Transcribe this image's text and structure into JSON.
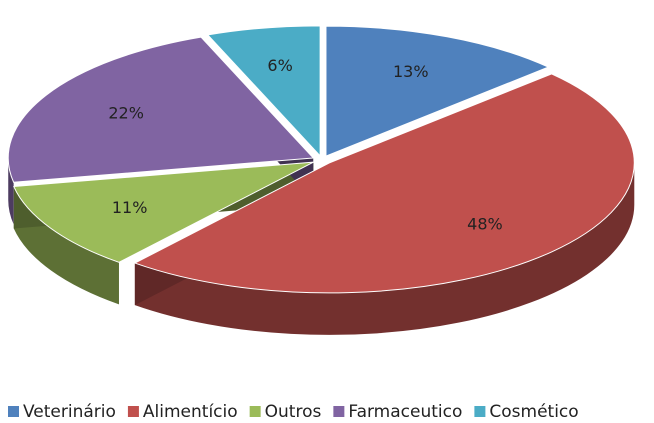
{
  "chart_data": {
    "type": "pie3d",
    "categories": [
      "Veterinário",
      "Alimentício",
      "Outros",
      "Farmaceutico",
      "Cosmético"
    ],
    "values": [
      13,
      48,
      11,
      22,
      6
    ],
    "value_labels": [
      "13%",
      "48%",
      "11%",
      "22%",
      "6%"
    ],
    "colors": [
      "#4f81bd",
      "#c0504d",
      "#9bbb59",
      "#8064a2",
      "#4bacc6"
    ],
    "legend": "bottom"
  }
}
